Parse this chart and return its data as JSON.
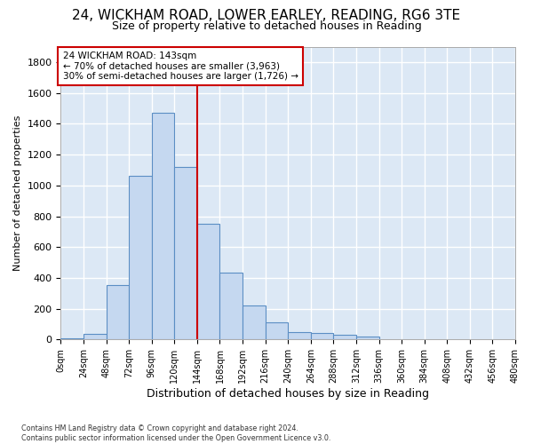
{
  "title1": "24, WICKHAM ROAD, LOWER EARLEY, READING, RG6 3TE",
  "title2": "Size of property relative to detached houses in Reading",
  "xlabel": "Distribution of detached houses by size in Reading",
  "ylabel": "Number of detached properties",
  "footnote": "Contains HM Land Registry data © Crown copyright and database right 2024.\nContains public sector information licensed under the Open Government Licence v3.0.",
  "bin_edges": [
    0,
    24,
    48,
    72,
    96,
    120,
    144,
    168,
    192,
    216,
    240,
    264,
    288,
    312,
    336,
    360,
    384,
    408,
    432,
    456,
    480
  ],
  "bar_values": [
    10,
    35,
    355,
    1060,
    1470,
    1120,
    750,
    435,
    220,
    110,
    50,
    45,
    30,
    20,
    0,
    5,
    0,
    0,
    0,
    0
  ],
  "bar_color": "#c5d8f0",
  "bar_edge_color": "#5b8ec4",
  "vline_x": 144,
  "vline_color": "#cc0000",
  "annotation_line1": "24 WICKHAM ROAD: 143sqm",
  "annotation_line2": "← 70% of detached houses are smaller (3,963)",
  "annotation_line3": "30% of semi-detached houses are larger (1,726) →",
  "annotation_box_edgecolor": "#cc0000",
  "ylim": [
    0,
    1900
  ],
  "yticks": [
    0,
    200,
    400,
    600,
    800,
    1000,
    1200,
    1400,
    1600,
    1800
  ],
  "plot_bg_color": "#dce8f5",
  "fig_bg_color": "#ffffff",
  "grid_color": "#ffffff",
  "title1_fontsize": 11,
  "title2_fontsize": 9,
  "xlabel_fontsize": 9,
  "ylabel_fontsize": 8
}
